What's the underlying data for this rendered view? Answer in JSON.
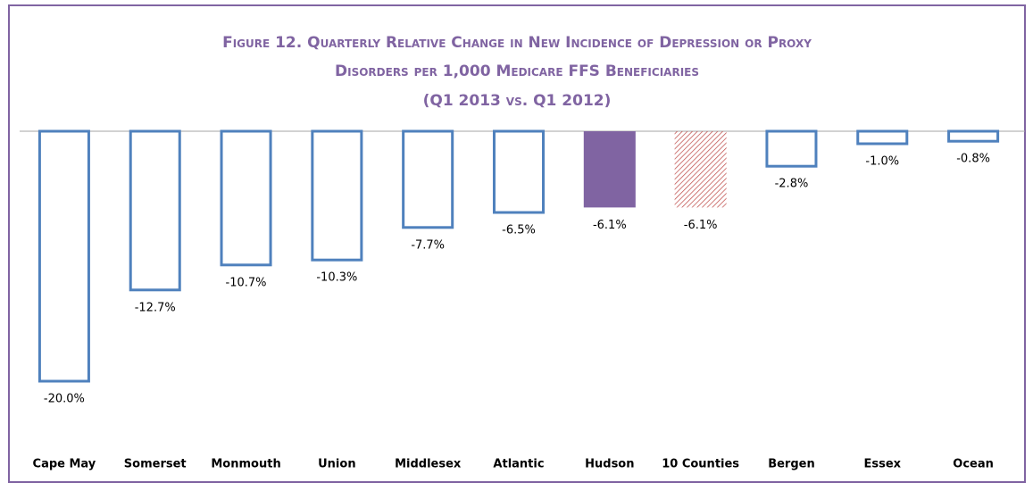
{
  "chart_data": {
    "type": "bar",
    "title": [
      "Figure 12. Quarterly Relative Change in New Incidence of Depression or Proxy",
      "Disorders per 1,000 Medicare FFS Beneficiaries",
      "(Q1 2013 vs. Q1 2012)"
    ],
    "categories": [
      "Cape May",
      "Somerset",
      "Monmouth",
      "Union",
      "Middlesex",
      "Atlantic",
      "Hudson",
      "10 Counties",
      "Bergen",
      "Essex",
      "Ocean"
    ],
    "values": [
      -20.0,
      -12.7,
      -10.7,
      -10.3,
      -7.7,
      -6.5,
      -6.1,
      -6.1,
      -2.8,
      -1.0,
      -0.8
    ],
    "value_labels": [
      "-20.0%",
      "-12.7%",
      "-10.7%",
      "-10.3%",
      "-7.7%",
      "-6.5%",
      "-6.1%",
      "-6.1%",
      "-2.8%",
      "-1.0%",
      "-0.8%"
    ],
    "bar_colors": [
      "#4f81bd",
      "#4f81bd",
      "#4f81bd",
      "#4f81bd",
      "#4f81bd",
      "#4f81bd",
      "#8064a2",
      "#c0504d",
      "#4f81bd",
      "#4f81bd",
      "#4f81bd"
    ],
    "bar_fill": [
      "outline",
      "outline",
      "outline",
      "outline",
      "outline",
      "outline",
      "solid",
      "hatched",
      "outline",
      "outline",
      "outline"
    ],
    "ylim": [
      -20,
      0
    ]
  }
}
